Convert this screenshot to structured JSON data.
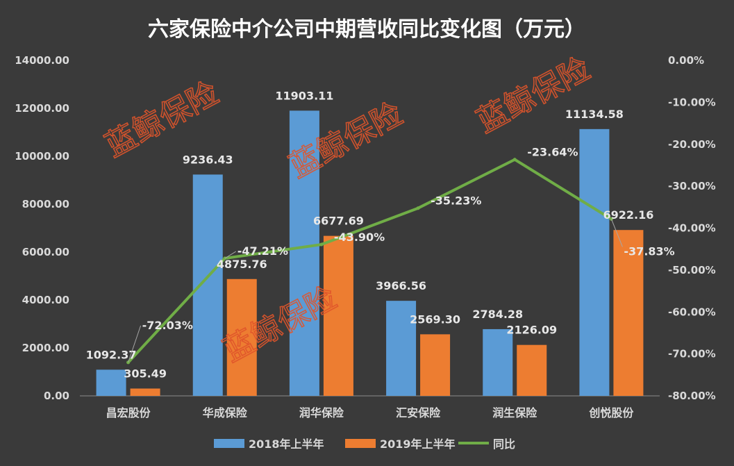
{
  "chart_data": {
    "type": "bar",
    "title": "六家保险中介公司中期营收同比变化图（万元）",
    "categories": [
      "昌宏股份",
      "华成保险",
      "润华保险",
      "汇安保险",
      "润生保险",
      "创悦股份"
    ],
    "series": [
      {
        "name": "2018年上半年",
        "type": "bar",
        "axis": "left",
        "color": "#5b9bd5",
        "values": [
          1092.37,
          9236.43,
          11903.11,
          3966.56,
          2784.28,
          11134.58
        ],
        "labels": [
          "1092.37",
          "9236.43",
          "11903.11",
          "3966.56",
          "2784.28",
          "11134.58"
        ]
      },
      {
        "name": "2019年上半年",
        "type": "bar",
        "axis": "right-scale-left",
        "color": "#ed7d31",
        "values": [
          305.49,
          4875.76,
          6677.69,
          2569.3,
          2126.09,
          6922.16
        ],
        "labels": [
          "305.49",
          "4875.76",
          "6677.69",
          "2569.30",
          "2126.09",
          "6922.16"
        ]
      },
      {
        "name": "同比",
        "type": "line",
        "axis": "right",
        "color": "#70ad47",
        "values": [
          -72.03,
          -47.21,
          -43.9,
          -35.23,
          -23.64,
          -37.83
        ],
        "labels": [
          "-72.03%",
          "-47.21%",
          "-43.90%",
          "-35.23%",
          "-23.64%",
          "-37.83%"
        ]
      }
    ],
    "ylim_left": [
      0,
      14000
    ],
    "ylim_right": [
      -80,
      0
    ],
    "yticks_left": [
      "0.00",
      "2000.00",
      "4000.00",
      "6000.00",
      "8000.00",
      "10000.00",
      "12000.00",
      "14000.00"
    ],
    "yticks_right": [
      "-80.00%",
      "-70.00%",
      "-60.00%",
      "-50.00%",
      "-40.00%",
      "-30.00%",
      "-20.00%",
      "-10.00%",
      "0.00%"
    ],
    "legend": "bottom",
    "grid": false,
    "background": "#3a3a3a"
  },
  "watermark": {
    "text": "蓝鲸保险",
    "color": "#e0552b"
  }
}
